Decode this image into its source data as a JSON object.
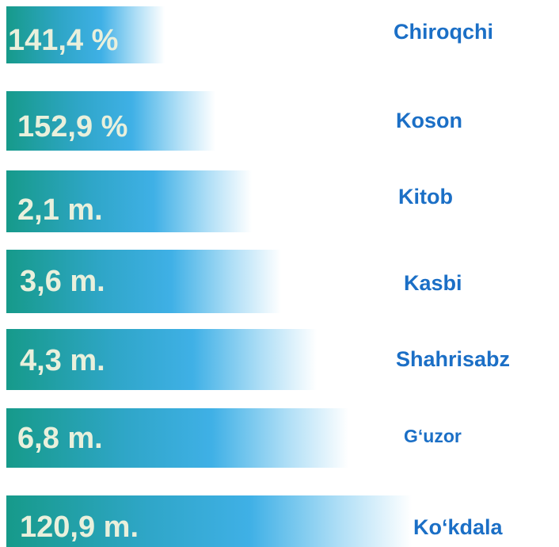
{
  "rows": [
    {
      "value": "141,4 %",
      "name": "Chiroqchi"
    },
    {
      "value": "152,9 %",
      "name": "Koson"
    },
    {
      "value": "2,1 m.",
      "name": "Kitob"
    },
    {
      "value": "3,6 m.",
      "name": "Kasbi"
    },
    {
      "value": "4,3 m.",
      "name": "Shahrisabz"
    },
    {
      "value": "6,8 m.",
      "name": "Gʻuzor"
    },
    {
      "value": "120,9 m.",
      "name": "Ko‘kdala"
    }
  ]
}
